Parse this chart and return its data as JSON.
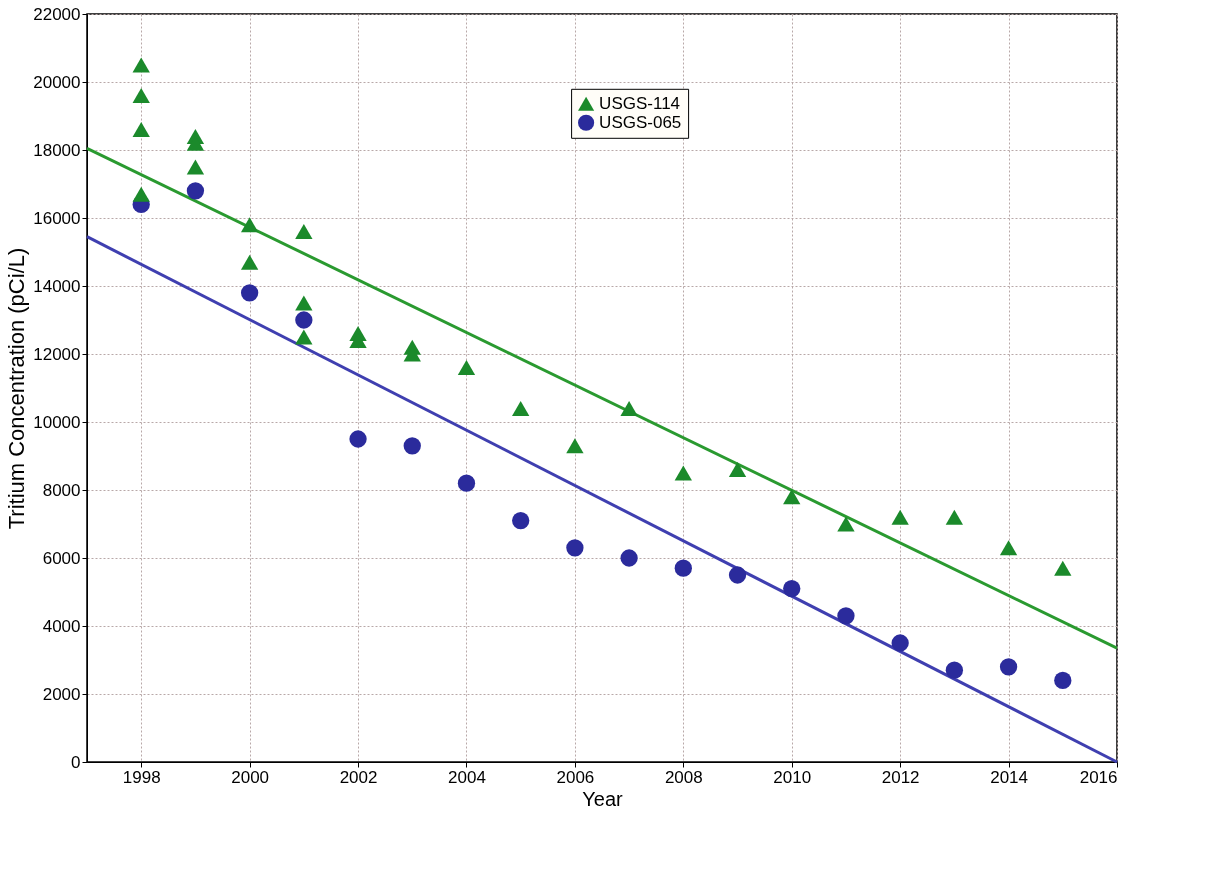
{
  "chart_data": {
    "type": "scatter",
    "xlabel": "Year",
    "ylabel": "Tritium Concentration (pCi/L)",
    "xlim": [
      1997,
      2016
    ],
    "xticks": [
      1998,
      2000,
      2002,
      2004,
      2006,
      2008,
      2010,
      2012,
      2014,
      2016
    ],
    "ylim": [
      0,
      22000
    ],
    "yticks": [
      0,
      2000,
      4000,
      6000,
      8000,
      10000,
      12000,
      14000,
      16000,
      18000,
      20000,
      22000
    ],
    "grid": true,
    "legend": "top center",
    "series": [
      {
        "name": "USGS-114",
        "color": "#1b8a2b",
        "marker": "triangle",
        "x": [
          1998,
          1998,
          1998,
          1998,
          1999,
          1999,
          1999,
          2000,
          2000,
          2001,
          2001,
          2001,
          2002,
          2002,
          2003,
          2003,
          2004,
          2005,
          2006,
          2007,
          2008,
          2009,
          2010,
          2011,
          2012,
          2013,
          2014,
          2015
        ],
        "values": [
          20500,
          19600,
          18600,
          16700,
          18400,
          18200,
          17500,
          15800,
          14700,
          15600,
          13500,
          12500,
          12600,
          12400,
          12200,
          12000,
          11600,
          10400,
          9300,
          10400,
          8500,
          8600,
          7800,
          7000,
          7200,
          7200,
          6300,
          5700
        ]
      },
      {
        "name": "USGS-065",
        "color": "#2b2b9c",
        "marker": "circle",
        "x": [
          1998,
          1999,
          2000,
          2001,
          2002,
          2003,
          2004,
          2005,
          2006,
          2007,
          2008,
          2009,
          2010,
          2011,
          2012,
          2013,
          2014,
          2015
        ],
        "values": [
          16400,
          16800,
          13800,
          13000,
          9500,
          9300,
          8200,
          7100,
          6300,
          6000,
          5700,
          5500,
          5100,
          4300,
          3500,
          2700,
          2800,
          2400
        ]
      },
      {
        "type": "line",
        "color": "#2a9a30",
        "marker": "none",
        "line_style": "solid",
        "x": [
          1997,
          2016
        ],
        "values": [
          18050,
          3350
        ]
      },
      {
        "type": "line",
        "color": "#3f3fb0",
        "marker": "none",
        "line_style": "solid",
        "x": [
          1997,
          2016
        ],
        "values": [
          15450,
          0
        ]
      }
    ]
  }
}
